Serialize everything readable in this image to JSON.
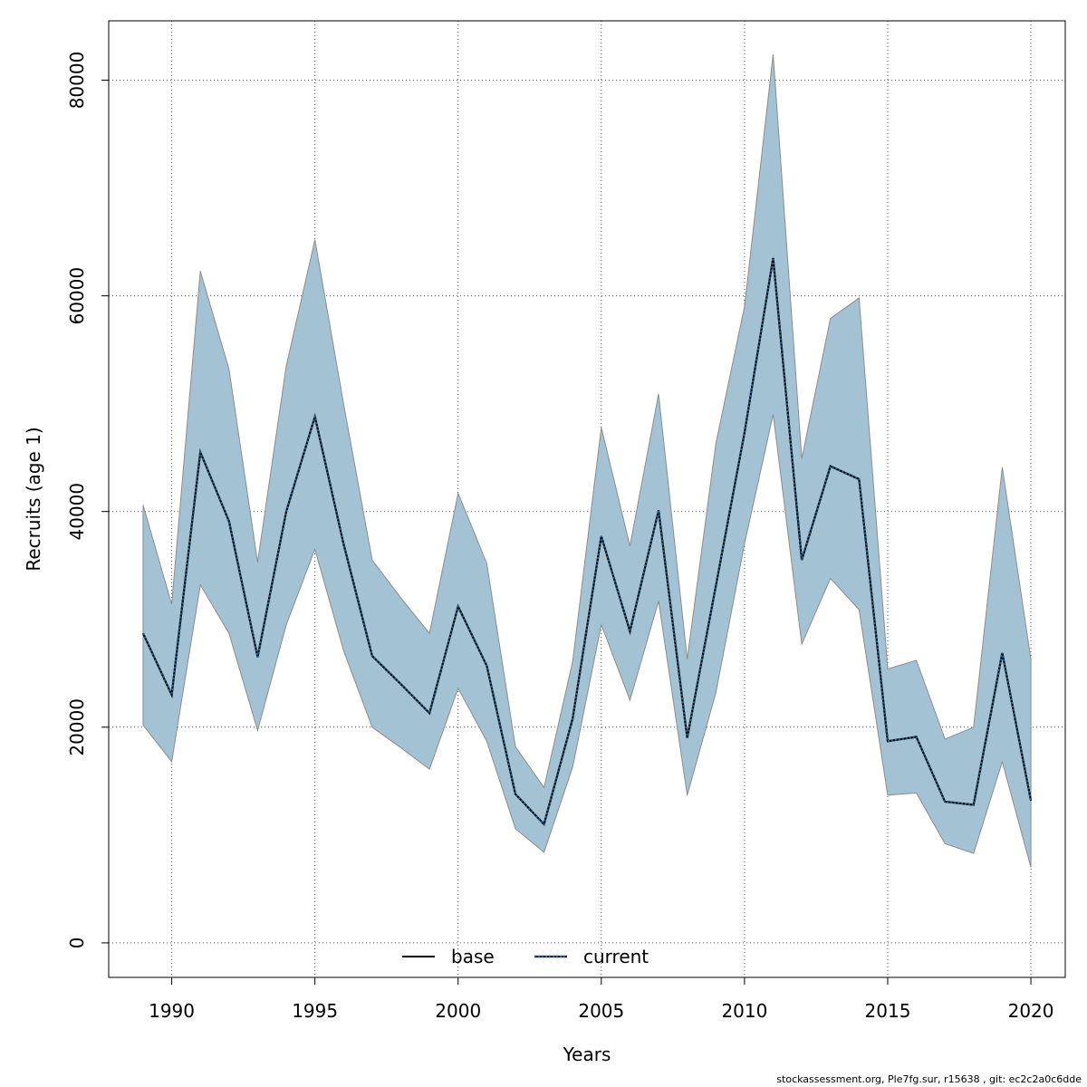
{
  "chart_data": {
    "type": "area",
    "xlabel": "Years",
    "ylabel": "Recruits (age 1)",
    "xlim": [
      1987.8,
      2021.2
    ],
    "ylim": [
      -3200,
      85500
    ],
    "x_ticks": [
      1990,
      1995,
      2000,
      2005,
      2010,
      2015,
      2020
    ],
    "y_ticks": [
      0,
      20000,
      40000,
      60000,
      80000
    ],
    "grid": true,
    "legend_position": "bottom-center",
    "band_color": "#a3c3d5",
    "band_edge_color": "#8c8c8c",
    "years": [
      1989,
      1990,
      1991,
      1992,
      1993,
      1994,
      1995,
      1996,
      1997,
      1998,
      1999,
      2000,
      2001,
      2002,
      2003,
      2004,
      2005,
      2006,
      2007,
      2008,
      2009,
      2010,
      2011,
      2012,
      2013,
      2014,
      2015,
      2016,
      2017,
      2018,
      2019,
      2020
    ],
    "upper": [
      40600,
      31400,
      62300,
      53200,
      35300,
      53500,
      65200,
      50000,
      35500,
      32000,
      28700,
      41700,
      35200,
      18200,
      14400,
      26100,
      47800,
      36800,
      50900,
      26300,
      46300,
      59000,
      82400,
      44900,
      57900,
      59800,
      25400,
      26200,
      18900,
      20000,
      44100,
      26300
    ],
    "lower": [
      20200,
      16800,
      33200,
      28700,
      19700,
      29500,
      36500,
      27100,
      20000,
      18100,
      16100,
      23600,
      18700,
      10600,
      8400,
      16300,
      29500,
      22500,
      31700,
      13700,
      23200,
      37000,
      49000,
      27700,
      33800,
      30900,
      13700,
      13900,
      9200,
      8300,
      16800,
      7000
    ],
    "series": [
      {
        "name": "base",
        "style": "solid",
        "color": "#000000",
        "values": [
          28700,
          23000,
          45500,
          39100,
          26500,
          40000,
          48800,
          37000,
          26600,
          24000,
          21300,
          31200,
          25700,
          13800,
          11000,
          20800,
          37700,
          28900,
          40100,
          19000,
          33100,
          47300,
          63500,
          35500,
          44200,
          43000,
          18700,
          19100,
          13100,
          12800,
          26900,
          13200
        ]
      },
      {
        "name": "current",
        "style": "dotted",
        "color": "#1f5f8b",
        "values": [
          28700,
          23000,
          45500,
          39100,
          26500,
          40000,
          48800,
          37000,
          26600,
          24000,
          21300,
          31200,
          25700,
          13800,
          11000,
          20800,
          37700,
          28900,
          40100,
          19000,
          33100,
          47300,
          63500,
          35500,
          44200,
          43000,
          18700,
          19100,
          13100,
          12800,
          26900,
          13200
        ]
      }
    ]
  },
  "footer": "stockassessment.org, Ple7fg.sur, r15638 , git: ec2c2a0c6dde"
}
